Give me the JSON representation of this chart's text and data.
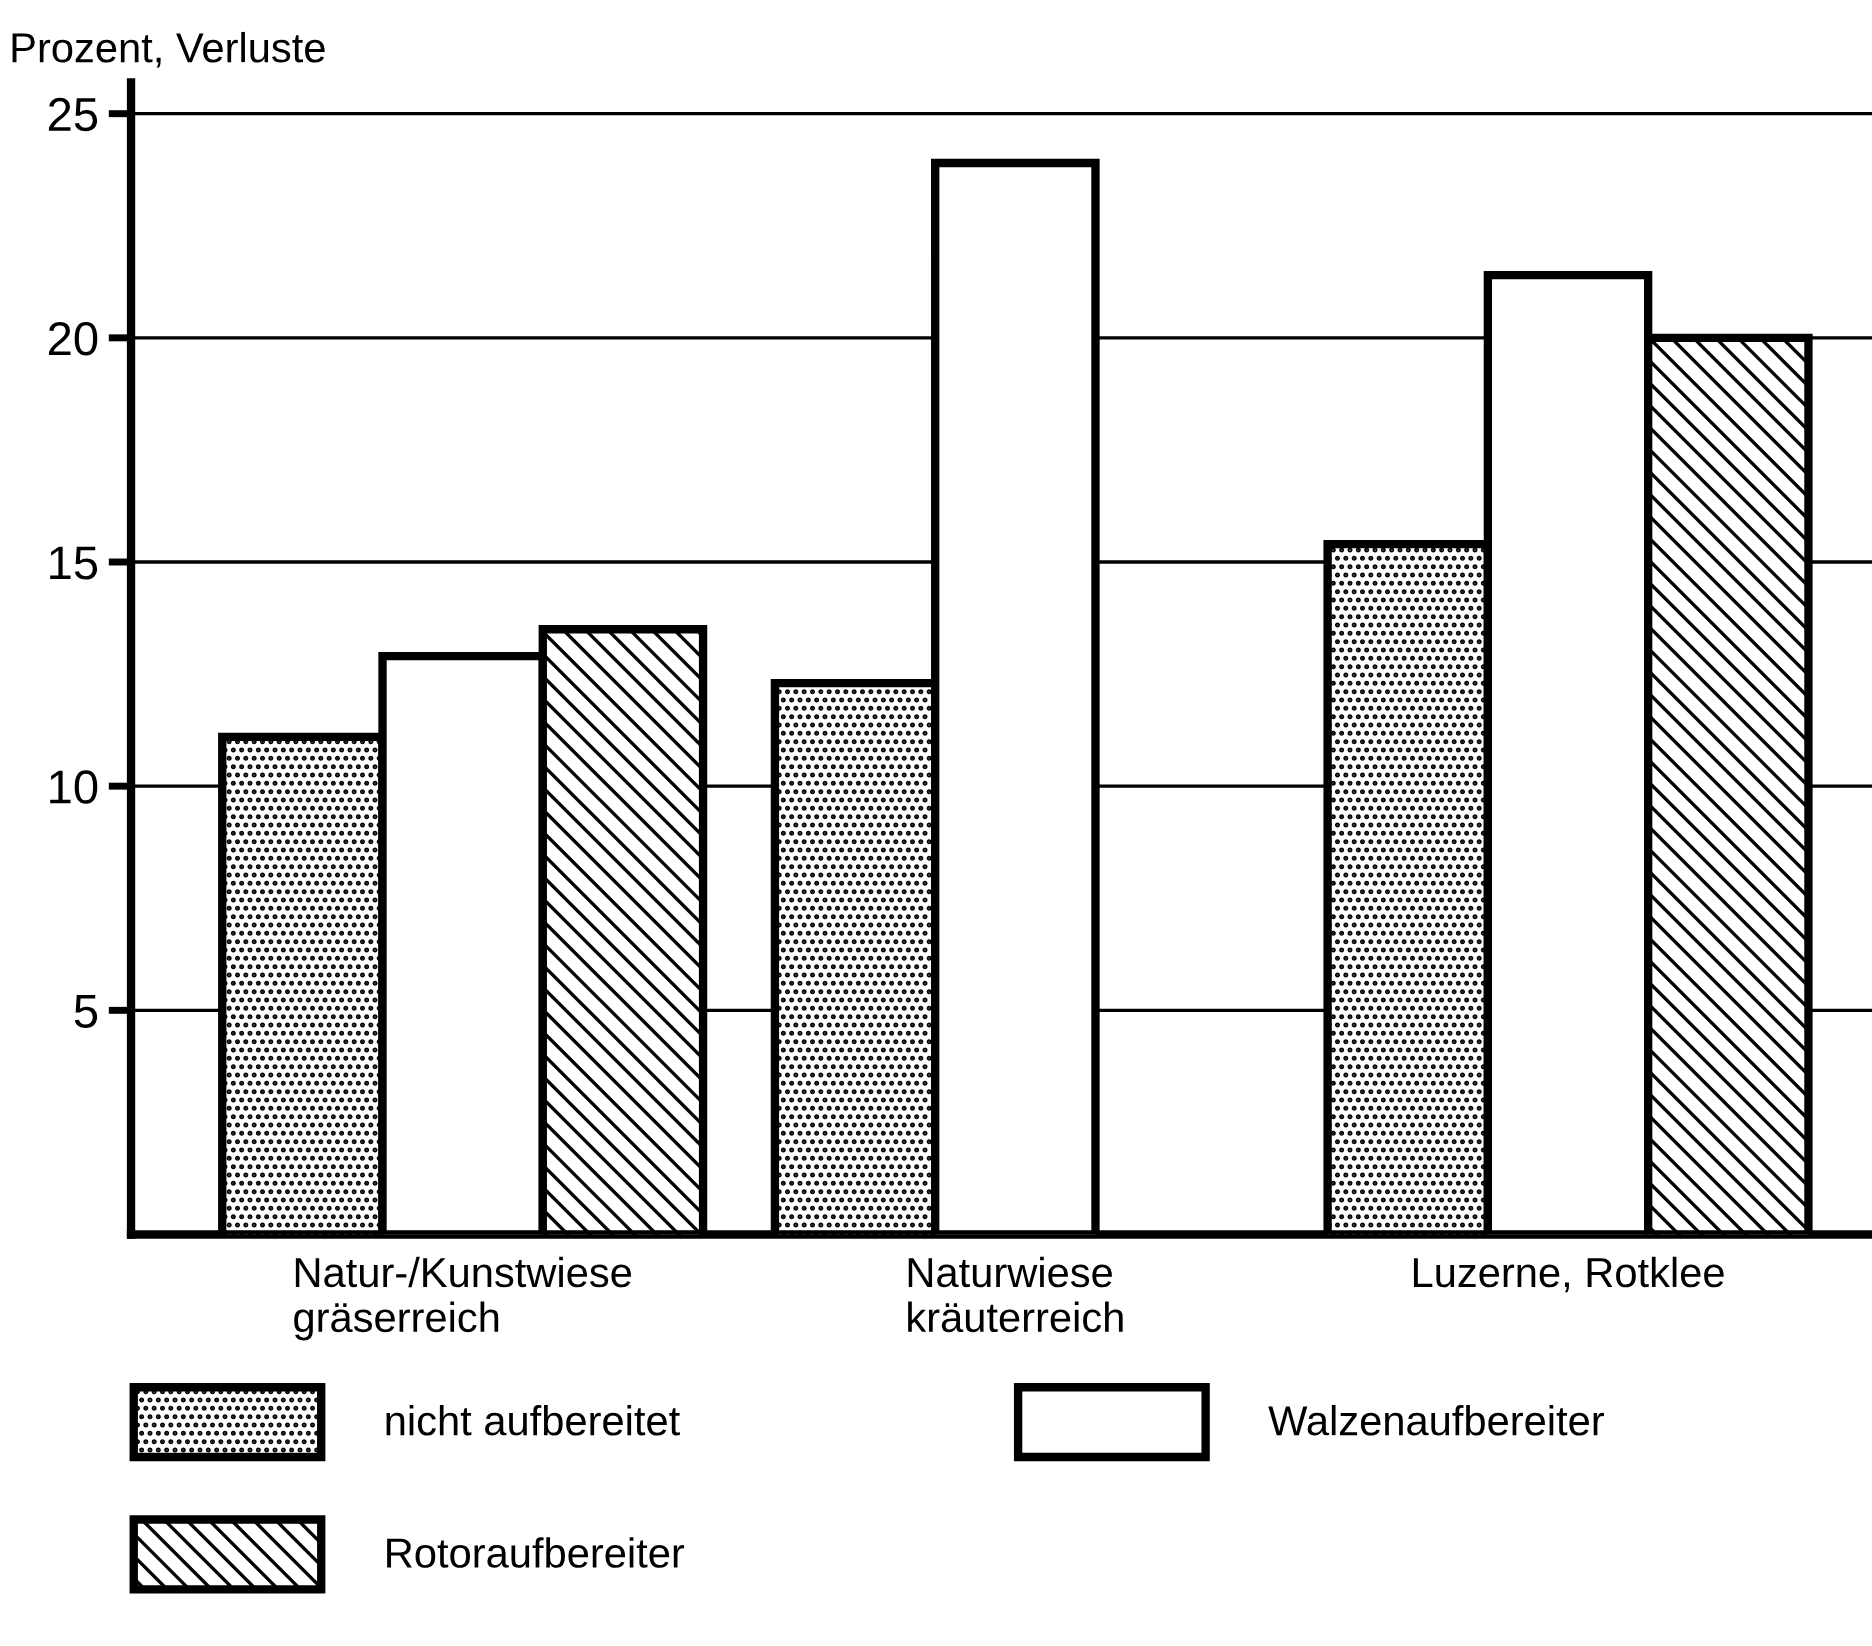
{
  "chart_data": {
    "type": "bar",
    "ylabel": "Prozent, Verluste",
    "categories": [
      "Natur-/Kunstwiese\ngräserreich",
      "Naturwiese\nkräuterreich",
      "Luzerne, Rotklee"
    ],
    "series": [
      {
        "name": "nicht aufbereitet",
        "color": "#000000",
        "values": [
          11.1,
          12.3,
          15.4
        ]
      },
      {
        "name": "Walzenaufbereiter",
        "color": "#ffffff",
        "values": [
          12.9,
          23.9,
          21.4
        ]
      },
      {
        "name": "Rotoraufbereiter",
        "color": "#000000",
        "values": [
          13.5,
          null,
          20.0
        ]
      }
    ],
    "ylim": [
      0,
      25.7
    ],
    "yticks": [
      5,
      10,
      15,
      20,
      25
    ],
    "grid": "y",
    "legend": "bottom"
  }
}
